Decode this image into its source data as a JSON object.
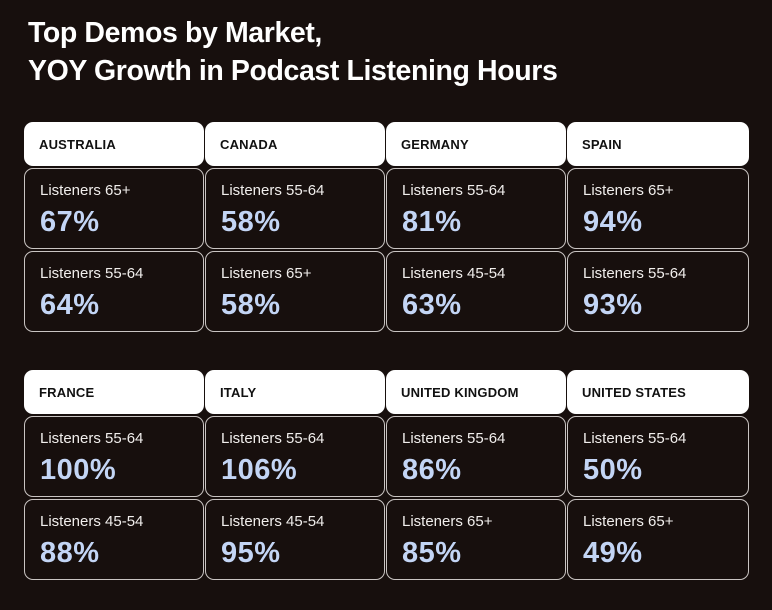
{
  "title": {
    "line1": "Top Demos by Market,",
    "line2": "YOY Growth in Podcast Listening Hours"
  },
  "colors": {
    "background": "#170f0d",
    "header_bg": "#ffffff",
    "value_text": "#c3d5f5",
    "cell_border": "#c9c4c2"
  },
  "groups": [
    {
      "markets": [
        {
          "name": "AUSTRALIA",
          "rows": [
            {
              "label": "Listeners 65+",
              "value": "67%"
            },
            {
              "label": "Listeners 55-64",
              "value": "64%"
            }
          ]
        },
        {
          "name": "CANADA",
          "rows": [
            {
              "label": "Listeners 55-64",
              "value": "58%"
            },
            {
              "label": "Listeners 65+",
              "value": "58%"
            }
          ]
        },
        {
          "name": "GERMANY",
          "rows": [
            {
              "label": "Listeners 55-64",
              "value": "81%"
            },
            {
              "label": "Listeners 45-54",
              "value": "63%"
            }
          ]
        },
        {
          "name": "SPAIN",
          "rows": [
            {
              "label": "Listeners 65+",
              "value": "94%"
            },
            {
              "label": "Listeners 55-64",
              "value": "93%"
            }
          ]
        }
      ]
    },
    {
      "markets": [
        {
          "name": "FRANCE",
          "rows": [
            {
              "label": "Listeners 55-64",
              "value": "100%"
            },
            {
              "label": "Listeners 45-54",
              "value": "88%"
            }
          ]
        },
        {
          "name": "ITALY",
          "rows": [
            {
              "label": "Listeners 55-64",
              "value": "106%"
            },
            {
              "label": "Listeners 45-54",
              "value": "95%"
            }
          ]
        },
        {
          "name": "UNITED KINGDOM",
          "rows": [
            {
              "label": "Listeners 55-64",
              "value": "86%"
            },
            {
              "label": "Listeners 65+",
              "value": "85%"
            }
          ]
        },
        {
          "name": "UNITED STATES",
          "rows": [
            {
              "label": "Listeners 55-64",
              "value": "50%"
            },
            {
              "label": "Listeners 65+",
              "value": "49%"
            }
          ]
        }
      ]
    }
  ]
}
